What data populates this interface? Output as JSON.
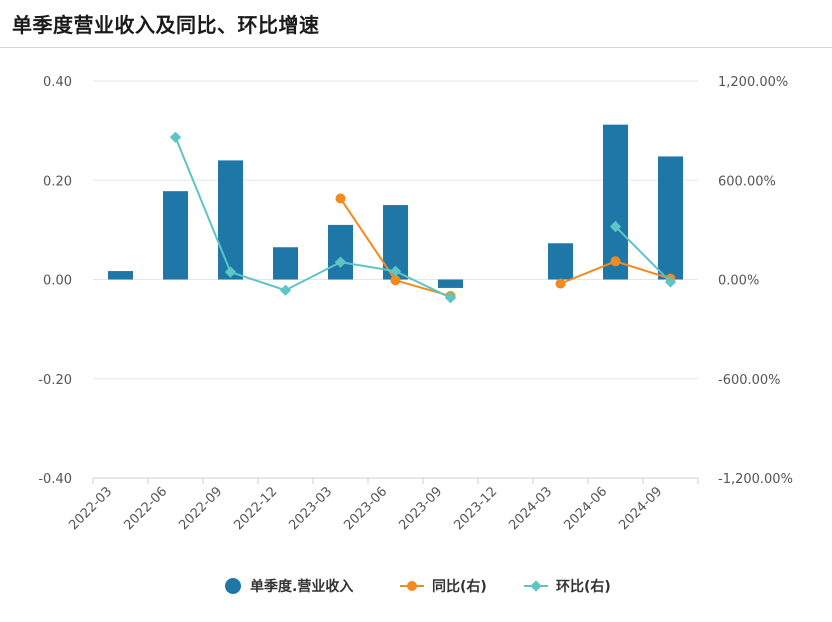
{
  "title": "单季度营业收入及同比、环比增速",
  "colors": {
    "bar": "#1f77a8",
    "yoy": "#f28a1e",
    "qoq": "#5ec5c5",
    "grid": "#e6e6e6",
    "axis": "#cfcfcf"
  },
  "legend": {
    "bar": "单季度.营业收入",
    "yoy": "同比(右)",
    "qoq": "环比(右)"
  },
  "chart_data": {
    "type": "bar",
    "categories": [
      "2022-03",
      "2022-06",
      "2022-09",
      "2022-12",
      "2023-03",
      "2023-06",
      "2023-09",
      "2023-12",
      "2024-03",
      "2024-06",
      "2024-09"
    ],
    "left_axis": {
      "ylim": [
        -0.4,
        0.4
      ],
      "ticks": [
        "0.40",
        "0.20",
        "0.00",
        "-0.20",
        "-0.40"
      ]
    },
    "right_axis": {
      "ylim": [
        -1200,
        1200
      ],
      "ticks": [
        "1,200.00%",
        "600.00%",
        "0.00%",
        "-600.00%",
        "-1,200.00%"
      ]
    },
    "series": [
      {
        "name": "单季度.营业收入",
        "type": "bar",
        "axis": "left",
        "values": [
          0.017,
          0.178,
          0.24,
          0.065,
          0.11,
          0.15,
          -0.017,
          null,
          0.073,
          0.312,
          0.248
        ]
      },
      {
        "name": "同比(右)",
        "type": "line",
        "axis": "right",
        "values": [
          null,
          null,
          null,
          null,
          490,
          -5,
          -100,
          null,
          -25,
          110,
          5
        ]
      },
      {
        "name": "环比(右)",
        "type": "line",
        "axis": "right",
        "values": [
          null,
          860,
          45,
          -65,
          105,
          50,
          -110,
          null,
          null,
          320,
          -15
        ]
      }
    ]
  }
}
